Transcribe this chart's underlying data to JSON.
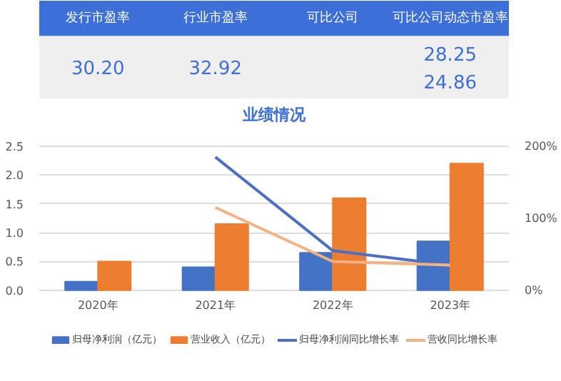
{
  "chart_data": [
    {
      "type": "other",
      "categories": [
        "发行市盈率",
        "行业市盈率",
        "可比公司",
        "可比公司动态市盈率"
      ],
      "annotations": [
        "30.20",
        "32.92",
        "28.25",
        "24.86"
      ]
    },
    {
      "type": "bar",
      "title": "业绩情况",
      "categories": [
        "2020年",
        "2021年",
        "2022年",
        "2023年"
      ],
      "ylim": [
        0,
        2.5
      ],
      "yticks": [
        {
          "value": 0,
          "label": "0.0"
        },
        0.5,
        {
          "value": 1,
          "label": "1.0"
        },
        1.5,
        {
          "value": 2,
          "label": "2.0"
        },
        2.5
      ],
      "y2lim": [
        0,
        200
      ],
      "y2ticks": [
        {
          "value": 0,
          "label": "0%"
        },
        {
          "value": 100,
          "label": "100%"
        },
        {
          "value": 200,
          "label": "200%"
        }
      ],
      "grid": "y",
      "legend": "bottom",
      "series": [
        {
          "name": "归母净利润（亿元）",
          "type": "bar",
          "color": "#4472c4",
          "values": [
            0.15,
            0.4,
            0.65,
            0.85
          ]
        },
        {
          "name": "营业收入（亿元）",
          "type": "bar",
          "color": "#ed7d31",
          "values": [
            0.5,
            1.15,
            1.6,
            2.2
          ]
        },
        {
          "name": "归母净利润同比增长率",
          "type": "line",
          "axis": "y2",
          "color": "#4a6fc4",
          "values": [
            null,
            185,
            55,
            35
          ]
        },
        {
          "name": "营收同比增长率",
          "type": "line",
          "axis": "y2",
          "color": "#f4b183",
          "values": [
            null,
            115,
            40,
            35
          ]
        }
      ]
    }
  ]
}
